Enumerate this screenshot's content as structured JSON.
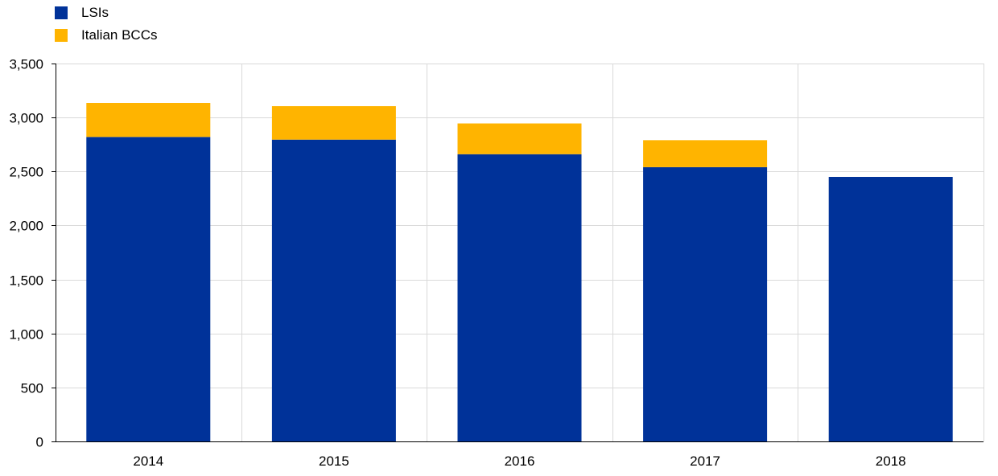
{
  "chart_data": {
    "type": "bar",
    "stacked": true,
    "categories": [
      "2014",
      "2015",
      "2016",
      "2017",
      "2018"
    ],
    "series": [
      {
        "name": "LSIs",
        "color": "#003299",
        "values": [
          2820,
          2795,
          2660,
          2540,
          2450
        ]
      },
      {
        "name": "Italian BCCs",
        "color": "#FFB400",
        "values": [
          315,
          310,
          285,
          250,
          0
        ]
      }
    ],
    "ylim": [
      0,
      3500
    ],
    "yticks": [
      0,
      500,
      1000,
      1500,
      2000,
      2500,
      3000,
      3500
    ],
    "ytick_labels": [
      "0",
      "500",
      "1,000",
      "1,500",
      "2,000",
      "2,500",
      "3,000",
      "3,500"
    ],
    "title": "",
    "xlabel": "",
    "ylabel": "",
    "grid": true,
    "legend_position": "top-left"
  }
}
